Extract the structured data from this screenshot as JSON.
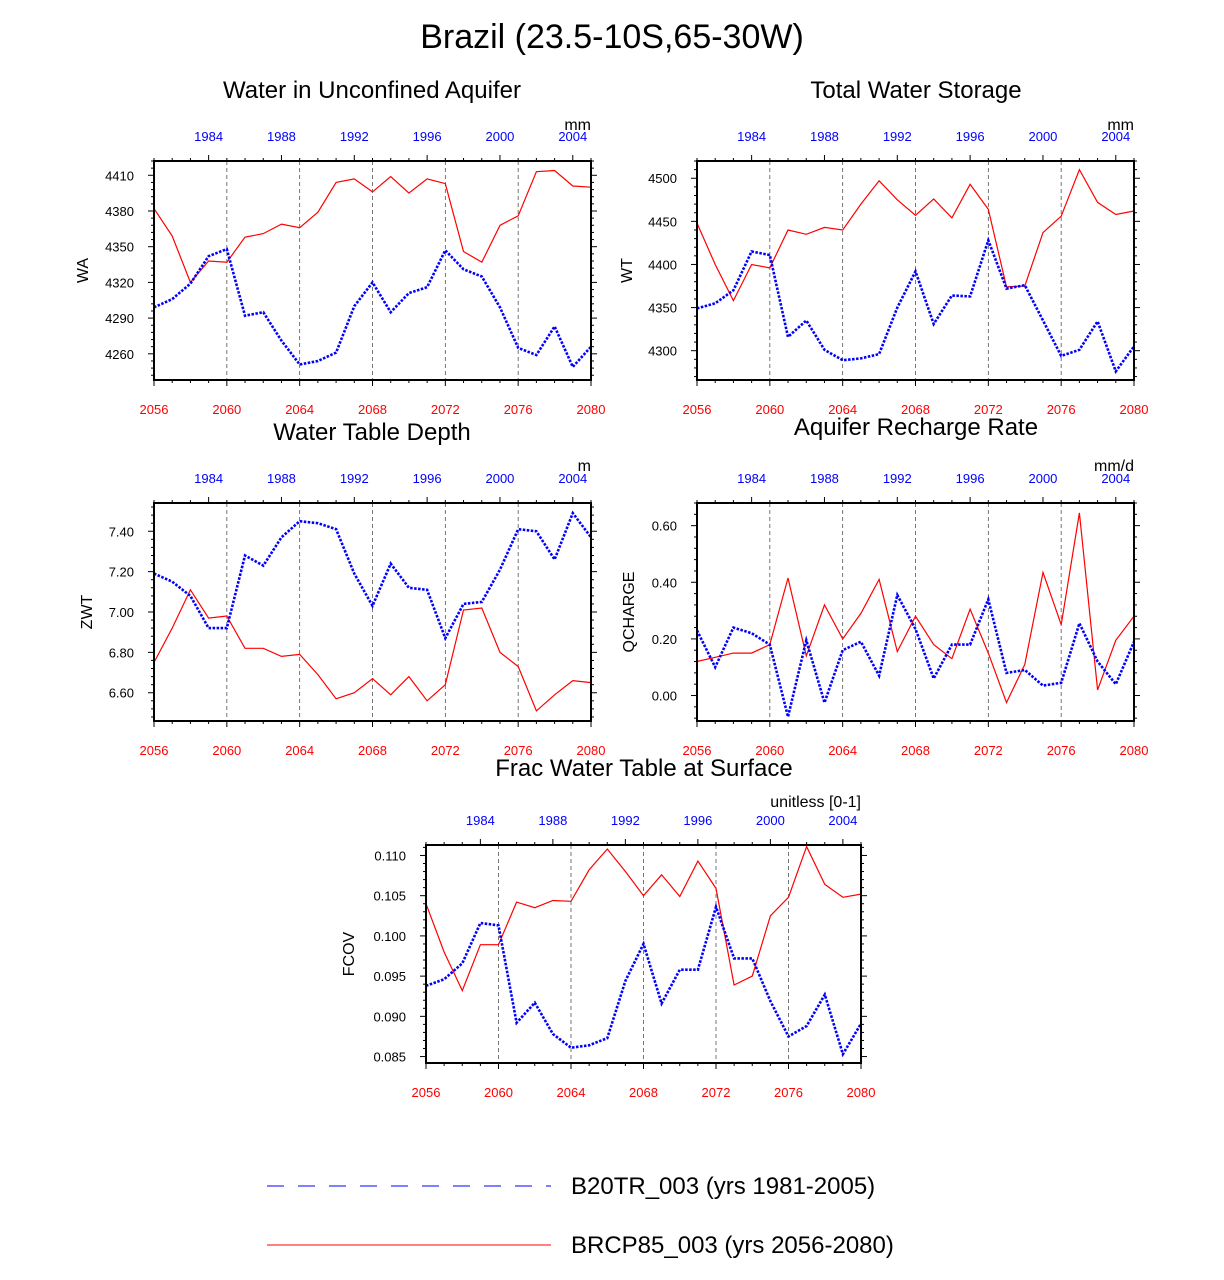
{
  "figure": {
    "title": "Brazil (23.5-10S,65-30W)"
  },
  "legend": [
    {
      "label": "B20TR_003 (yrs 1981-2005)",
      "color": "#0000ff",
      "dash": true
    },
    {
      "label": "BRCP85_003 (yrs 2056-2080)",
      "color": "#ff0000",
      "dash": false
    }
  ],
  "chart_data": [
    {
      "type": "line",
      "title": "Water in Unconfined Aquifer",
      "ylabel": "WA",
      "units": "mm",
      "xlim_bottom": [
        2056,
        2080
      ],
      "xticks_bottom": [
        2056,
        2060,
        2064,
        2068,
        2072,
        2076,
        2080
      ],
      "xticks_top": [
        "1984",
        "1988",
        "1992",
        "1996",
        "2000",
        "2004"
      ],
      "ylim": [
        4238,
        4422
      ],
      "yticks": [
        4260,
        4290,
        4320,
        4350,
        4380,
        4410
      ],
      "ytick_labels": [
        "4260",
        "4290",
        "4320",
        "4350",
        "4380",
        "4410"
      ],
      "series": [
        {
          "name": "BRCP85_003",
          "color": "#ff0000",
          "values": [
            4382,
            4359,
            4320,
            4338,
            4337,
            4358,
            4361,
            4369,
            4366,
            4379,
            4404,
            4407,
            4396,
            4409,
            4395,
            4407,
            4403,
            4346,
            4337,
            4368,
            4376,
            4413,
            4414,
            4401,
            4400
          ]
        },
        {
          "name": "B20TR_003",
          "color": "#0000ff",
          "values": [
            4299,
            4306,
            4319,
            4342,
            4348,
            4292,
            4295,
            4271,
            4251,
            4254,
            4261,
            4300,
            4320,
            4295,
            4311,
            4316,
            4347,
            4331,
            4325,
            4299,
            4265,
            4259,
            4283,
            4249,
            4266
          ]
        }
      ]
    },
    {
      "type": "line",
      "title": "Total Water Storage",
      "ylabel": "WT",
      "units": "mm",
      "xlim_bottom": [
        2056,
        2080
      ],
      "xticks_bottom": [
        2056,
        2060,
        2064,
        2068,
        2072,
        2076,
        2080
      ],
      "xticks_top": [
        "1984",
        "1988",
        "1992",
        "1996",
        "2000",
        "2004"
      ],
      "ylim": [
        4266,
        4520
      ],
      "yticks": [
        4300,
        4350,
        4400,
        4450,
        4500
      ],
      "ytick_labels": [
        "4300",
        "4350",
        "4400",
        "4450",
        "4500"
      ],
      "series": [
        {
          "name": "BRCP85_003",
          "color": "#ff0000",
          "values": [
            4448,
            4400,
            4358,
            4400,
            4396,
            4440,
            4435,
            4443,
            4440,
            4470,
            4497,
            4475,
            4457,
            4476,
            4454,
            4493,
            4464,
            4374,
            4375,
            4437,
            4456,
            4510,
            4472,
            4458,
            4462
          ]
        },
        {
          "name": "B20TR_003",
          "color": "#0000ff",
          "values": [
            4349,
            4355,
            4370,
            4415,
            4411,
            4316,
            4335,
            4301,
            4289,
            4291,
            4296,
            4350,
            4392,
            4331,
            4364,
            4363,
            4428,
            4372,
            4376,
            4335,
            4294,
            4301,
            4334,
            4276,
            4305
          ]
        }
      ]
    },
    {
      "type": "line",
      "title": "Water Table Depth",
      "ylabel": "ZWT",
      "units": "m",
      "xlim_bottom": [
        2056,
        2080
      ],
      "xticks_bottom": [
        2056,
        2060,
        2064,
        2068,
        2072,
        2076,
        2080
      ],
      "xticks_top": [
        "1984",
        "1988",
        "1992",
        "1996",
        "2000",
        "2004"
      ],
      "ylim": [
        6.46,
        7.54
      ],
      "yticks": [
        6.6,
        6.8,
        7.0,
        7.2,
        7.4
      ],
      "ytick_labels": [
        "6.60",
        "6.80",
        "7.00",
        "7.20",
        "7.40"
      ],
      "series": [
        {
          "name": "BRCP85_003",
          "color": "#ff0000",
          "values": [
            6.75,
            6.92,
            7.11,
            6.97,
            6.98,
            6.82,
            6.82,
            6.78,
            6.79,
            6.69,
            6.57,
            6.6,
            6.67,
            6.59,
            6.68,
            6.56,
            6.64,
            7.01,
            7.02,
            6.8,
            6.73,
            6.51,
            6.59,
            6.66,
            6.65
          ]
        },
        {
          "name": "B20TR_003",
          "color": "#0000ff",
          "values": [
            7.19,
            7.15,
            7.08,
            6.92,
            6.92,
            7.28,
            7.23,
            7.37,
            7.45,
            7.44,
            7.41,
            7.19,
            7.03,
            7.24,
            7.12,
            7.11,
            6.87,
            7.04,
            7.05,
            7.21,
            7.41,
            7.4,
            7.26,
            7.49,
            7.37
          ]
        }
      ]
    },
    {
      "type": "line",
      "title": "Aquifer Recharge Rate",
      "ylabel": "QCHARGE",
      "units": "mm/d",
      "xlim_bottom": [
        2056,
        2080
      ],
      "xticks_bottom": [
        2056,
        2060,
        2064,
        2068,
        2072,
        2076,
        2080
      ],
      "xticks_top": [
        "1984",
        "1988",
        "1992",
        "1996",
        "2000",
        "2004"
      ],
      "ylim": [
        -0.09,
        0.68
      ],
      "yticks": [
        0.0,
        0.2,
        0.4,
        0.6
      ],
      "ytick_labels": [
        "0.00",
        "0.20",
        "0.40",
        "0.60"
      ],
      "series": [
        {
          "name": "BRCP85_003",
          "color": "#ff0000",
          "values": [
            0.12,
            0.135,
            0.15,
            0.15,
            0.18,
            0.415,
            0.14,
            0.32,
            0.2,
            0.29,
            0.41,
            0.155,
            0.28,
            0.18,
            0.13,
            0.305,
            0.15,
            -0.025,
            0.11,
            0.435,
            0.25,
            0.645,
            0.02,
            0.195,
            0.28
          ]
        },
        {
          "name": "B20TR_003",
          "color": "#0000ff",
          "values": [
            0.23,
            0.1,
            0.24,
            0.22,
            0.18,
            -0.075,
            0.195,
            -0.025,
            0.16,
            0.19,
            0.07,
            0.355,
            0.235,
            0.06,
            0.18,
            0.18,
            0.34,
            0.08,
            0.09,
            0.035,
            0.045,
            0.255,
            0.12,
            0.04,
            0.19
          ]
        }
      ]
    },
    {
      "type": "line",
      "title": "Frac Water Table at Surface",
      "ylabel": "FCOV",
      "units": "unitless [0-1]",
      "xlim_bottom": [
        2056,
        2080
      ],
      "xticks_bottom": [
        2056,
        2060,
        2064,
        2068,
        2072,
        2076,
        2080
      ],
      "xticks_top": [
        "1984",
        "1988",
        "1992",
        "1996",
        "2000",
        "2004"
      ],
      "ylim": [
        0.0842,
        0.1113
      ],
      "yticks": [
        0.085,
        0.09,
        0.095,
        0.1,
        0.105,
        0.11
      ],
      "ytick_labels": [
        "0.085",
        "0.090",
        "0.095",
        "0.100",
        "0.105",
        "0.110"
      ],
      "series": [
        {
          "name": "BRCP85_003",
          "color": "#ff0000",
          "values": [
            0.104,
            0.098,
            0.0932,
            0.0989,
            0.0989,
            0.1042,
            0.1035,
            0.1044,
            0.1043,
            0.1082,
            0.1108,
            0.108,
            0.105,
            0.1076,
            0.1049,
            0.1093,
            0.1059,
            0.0939,
            0.095,
            0.1025,
            0.1048,
            0.1111,
            0.1064,
            0.1048,
            0.1052
          ]
        },
        {
          "name": "B20TR_003",
          "color": "#0000ff",
          "values": [
            0.0938,
            0.0946,
            0.0966,
            0.1016,
            0.1013,
            0.0892,
            0.0917,
            0.0878,
            0.0861,
            0.0864,
            0.0873,
            0.0944,
            0.099,
            0.0916,
            0.0958,
            0.0958,
            0.1036,
            0.0972,
            0.0972,
            0.0919,
            0.0875,
            0.0888,
            0.0927,
            0.0853,
            0.0891
          ]
        }
      ]
    }
  ]
}
